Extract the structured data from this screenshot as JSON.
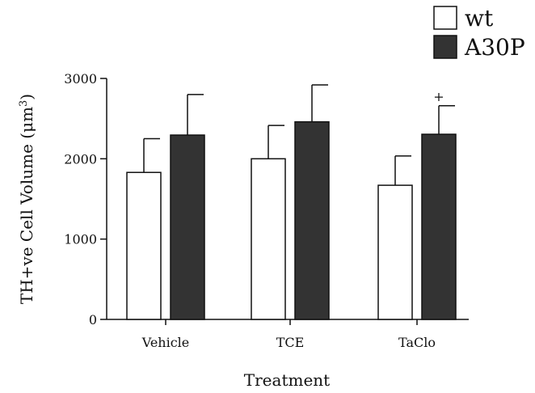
{
  "chart_data": {
    "type": "bar",
    "categories": [
      "Vehicle",
      "TCE",
      "TaClo"
    ],
    "series": [
      {
        "name": "wt",
        "values": [
          1830,
          2000,
          1670
        ],
        "errors": [
          420,
          415,
          365
        ],
        "color": "#ffffff"
      },
      {
        "name": "A30P",
        "values": [
          2295,
          2460,
          2305
        ],
        "errors": [
          505,
          460,
          355
        ],
        "color": "#333333"
      }
    ],
    "annotations": [
      {
        "category": "TaClo",
        "series": "A30P",
        "text": "+"
      }
    ],
    "xlabel": "Treatment",
    "ylabel_prefix": "TH+ve Cell Volume (μm",
    "ylabel_sup": "3",
    "ylabel_suffix": ")",
    "ylim": [
      0,
      3000
    ],
    "yticks": [
      "0",
      "1000",
      "2000",
      "3000"
    ],
    "grid": false,
    "legend": "top-right"
  }
}
